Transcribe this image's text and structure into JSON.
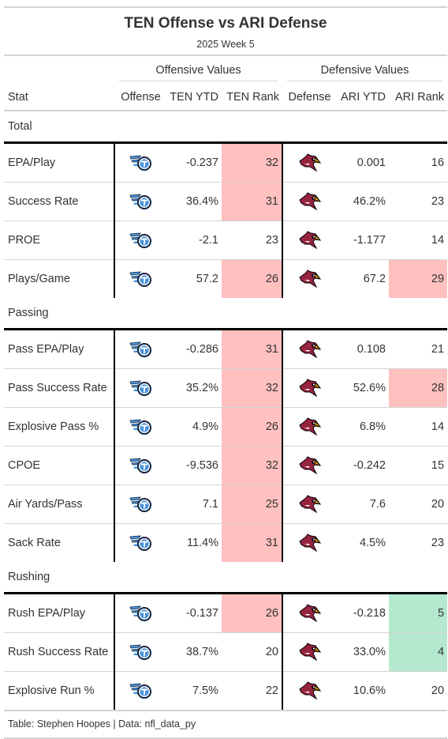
{
  "header": {
    "title": "TEN Offense vs ARI Defense",
    "subtitle": "2025 Week 5"
  },
  "spanners": {
    "offense": "Offensive Values",
    "defense": "Defensive Values"
  },
  "columns": {
    "stat": "Stat",
    "offense": "Offense",
    "off_ytd": "TEN YTD",
    "off_rank": "TEN Rank",
    "defense": "Defense",
    "def_ytd": "ARI YTD",
    "def_rank": "ARI Rank"
  },
  "teams": {
    "offense_icon": "titans-logo-icon",
    "defense_icon": "cardinals-logo-icon"
  },
  "colors": {
    "bad_rank": "#ffc0c0",
    "good_rank": "#b4e9cf"
  },
  "groups": [
    {
      "name": "Total",
      "rows": [
        {
          "stat": "EPA/Play",
          "off_ytd": "-0.237",
          "off_rank": "32",
          "off_hl": "bad",
          "def_ytd": "0.001",
          "def_rank": "16",
          "def_hl": ""
        },
        {
          "stat": "Success Rate",
          "off_ytd": "36.4%",
          "off_rank": "31",
          "off_hl": "bad",
          "def_ytd": "46.2%",
          "def_rank": "23",
          "def_hl": ""
        },
        {
          "stat": "PROE",
          "off_ytd": "-2.1",
          "off_rank": "23",
          "off_hl": "",
          "def_ytd": "-1.177",
          "def_rank": "14",
          "def_hl": ""
        },
        {
          "stat": "Plays/Game",
          "off_ytd": "57.2",
          "off_rank": "26",
          "off_hl": "bad",
          "def_ytd": "67.2",
          "def_rank": "29",
          "def_hl": "bad"
        }
      ]
    },
    {
      "name": "Passing",
      "rows": [
        {
          "stat": "Pass EPA/Play",
          "off_ytd": "-0.286",
          "off_rank": "31",
          "off_hl": "bad",
          "def_ytd": "0.108",
          "def_rank": "21",
          "def_hl": ""
        },
        {
          "stat": "Pass Success Rate",
          "off_ytd": "35.2%",
          "off_rank": "32",
          "off_hl": "bad",
          "def_ytd": "52.6%",
          "def_rank": "28",
          "def_hl": "bad"
        },
        {
          "stat": "Explosive Pass %",
          "off_ytd": "4.9%",
          "off_rank": "26",
          "off_hl": "bad",
          "def_ytd": "6.8%",
          "def_rank": "14",
          "def_hl": ""
        },
        {
          "stat": "CPOE",
          "off_ytd": "-9.536",
          "off_rank": "32",
          "off_hl": "bad",
          "def_ytd": "-0.242",
          "def_rank": "15",
          "def_hl": ""
        },
        {
          "stat": "Air Yards/Pass",
          "off_ytd": "7.1",
          "off_rank": "25",
          "off_hl": "bad",
          "def_ytd": "7.6",
          "def_rank": "20",
          "def_hl": ""
        },
        {
          "stat": "Sack Rate",
          "off_ytd": "11.4%",
          "off_rank": "31",
          "off_hl": "bad",
          "def_ytd": "4.5%",
          "def_rank": "23",
          "def_hl": ""
        }
      ]
    },
    {
      "name": "Rushing",
      "rows": [
        {
          "stat": "Rush EPA/Play",
          "off_ytd": "-0.137",
          "off_rank": "26",
          "off_hl": "bad",
          "def_ytd": "-0.218",
          "def_rank": "5",
          "def_hl": "good"
        },
        {
          "stat": "Rush Success Rate",
          "off_ytd": "38.7%",
          "off_rank": "20",
          "off_hl": "",
          "def_ytd": "33.0%",
          "def_rank": "4",
          "def_hl": "good"
        },
        {
          "stat": "Explosive Run %",
          "off_ytd": "7.5%",
          "off_rank": "22",
          "off_hl": "",
          "def_ytd": "10.6%",
          "def_rank": "20",
          "def_hl": ""
        }
      ]
    }
  ],
  "footer": "Table: Stephen Hoopes | Data: nfl_data_py"
}
